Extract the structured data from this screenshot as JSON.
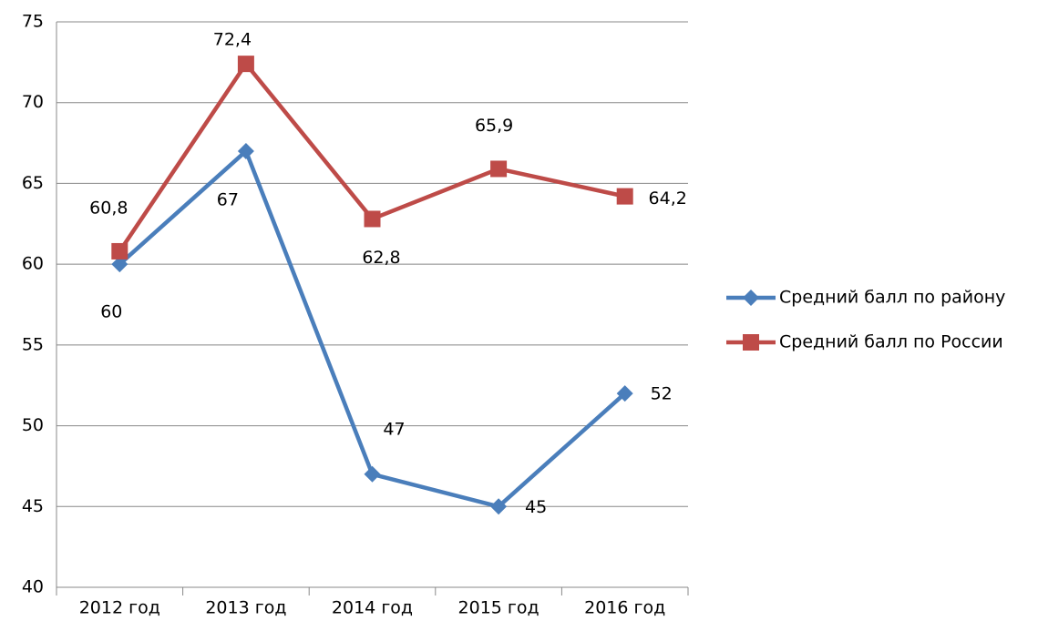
{
  "chart_data": {
    "type": "line",
    "categories": [
      "2012 год",
      "2013 год",
      "2014 год",
      "2015 год",
      "2016 год"
    ],
    "series": [
      {
        "name": "Средний балл по району",
        "color": "#4a7ebb",
        "marker": "diamond",
        "values": [
          60,
          67,
          47,
          45,
          52
        ]
      },
      {
        "name": "Средний балл по России",
        "color": "#be4b48",
        "marker": "square",
        "values": [
          60.8,
          72.4,
          62.8,
          65.9,
          64.2
        ],
        "value_labels": [
          "60,8",
          "72,4",
          "62,8",
          "65,9",
          "64,2"
        ]
      }
    ],
    "ylim": [
      40,
      75
    ],
    "yticks": [
      40,
      45,
      50,
      55,
      60,
      65,
      70,
      75
    ],
    "grid": true,
    "legend": "right"
  }
}
